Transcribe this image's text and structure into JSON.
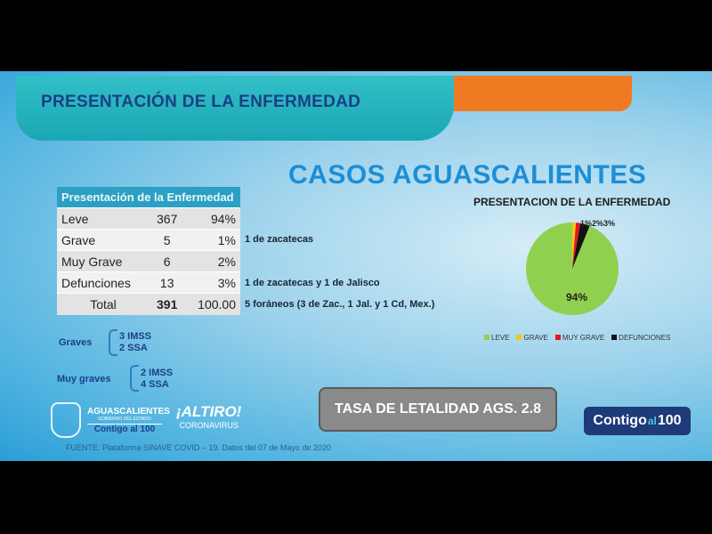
{
  "header": {
    "title": "PRESENTACIÓN DE LA ENFERMEDAD"
  },
  "subtitle": "CASOS AGUASCALIENTES",
  "table": {
    "header": "Presentación de la Enfermedad",
    "rows": [
      {
        "label": "Leve",
        "count": "367",
        "pct": "94%"
      },
      {
        "label": "Grave",
        "count": "5",
        "pct": "1%"
      },
      {
        "label": "Muy Grave",
        "count": "6",
        "pct": "2%"
      },
      {
        "label": "Defunciones",
        "count": "13",
        "pct": "3%"
      }
    ],
    "total": {
      "label": "Total",
      "count": "391",
      "pct": "100.00"
    }
  },
  "notes": {
    "grave": "1 de zacatecas",
    "defunciones": "1 de zacatecas y 1 de Jalisco",
    "total": "5 foráneos (3 de Zac., 1 Jal. y 1 Cd, Mex.)"
  },
  "graves": {
    "label": "Graves",
    "lines": [
      "3  IMSS",
      "2 SSA"
    ]
  },
  "muy_graves": {
    "label": "Muy graves",
    "lines": [
      "2 IMSS",
      "4 SSA"
    ]
  },
  "tasa": "TASA DE LETALIDAD AGS. 2.8",
  "brand": {
    "contigo": "Contigo",
    "al": "al",
    "cien": "100"
  },
  "logos": {
    "ags": "AGUASCALIENTES",
    "gob": "GOBIERNO DEL ESTADO",
    "contigo": "Contigo al 100",
    "altiro": "¡ALTIRO!",
    "coronavirus": "CORONAVIRUS"
  },
  "fuente": "FUENTE. Plataforma SINAVE COVID – 19. Datos del 07 de Mayo de 2020",
  "chart_data": {
    "type": "pie",
    "title": "PRESENTACION DE LA ENFERMEDAD",
    "categories": [
      "LEVE",
      "GRAVE",
      "MUY GRAVE",
      "DEFUNCIONES"
    ],
    "values": [
      367,
      5,
      6,
      13
    ],
    "labels": [
      "94%",
      "1%",
      "2%",
      "3%"
    ],
    "colors": [
      "#8fd14f",
      "#f5c518",
      "#e8141b",
      "#111111"
    ],
    "legend": "bottom"
  }
}
